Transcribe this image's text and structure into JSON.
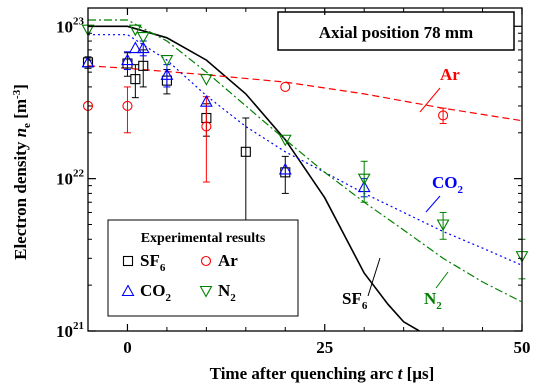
{
  "chart_data": {
    "type": "scatter",
    "title": "Axial position 78 mm",
    "xlabel": {
      "main": "Time after quenching arc ",
      "var": "t",
      "unit": " [µs]"
    },
    "ylabel": {
      "main": "Electron density ",
      "var": "n",
      "sub": "e",
      "unit_open": " [m",
      "unit_sup": "-3",
      "unit_close": "]"
    },
    "xlim": [
      -5,
      50
    ],
    "ylim_log10": [
      21,
      23.12
    ],
    "x_ticks": [
      {
        "value": 0,
        "label": "0"
      },
      {
        "value": 25,
        "label": "25"
      },
      {
        "value": 50,
        "label": "50"
      }
    ],
    "y_ticks": [
      {
        "value": 21,
        "base": "10",
        "exp": "21"
      },
      {
        "value": 22,
        "base": "10",
        "exp": "22"
      },
      {
        "value": 23,
        "base": "10",
        "exp": "23"
      }
    ],
    "legend": {
      "title": "Experimental results",
      "placement": "bottom-left",
      "items": [
        {
          "key": "SF6",
          "label": "SF",
          "sub": "6"
        },
        {
          "key": "Ar",
          "label": "Ar",
          "sub": ""
        },
        {
          "key": "CO2",
          "label": "CO",
          "sub": "2"
        },
        {
          "key": "N2",
          "label": "N",
          "sub": "2"
        }
      ]
    },
    "series": [
      {
        "key": "SF6",
        "marker": "square",
        "color": "#000000",
        "points": [
          {
            "x": -5,
            "y": 5.8e+22,
            "err": 5e+21
          },
          {
            "x": 0,
            "y": 5.7e+22,
            "err": 1e+22
          },
          {
            "x": 1,
            "y": 4.5e+22,
            "err": 1.1e+22
          },
          {
            "x": 2,
            "y": 5.5e+22,
            "err": 1.5e+22
          },
          {
            "x": 5,
            "y": 4.4e+22,
            "err": 8e+21
          },
          {
            "x": 10,
            "y": 2.5e+22,
            "err": 6e+21
          },
          {
            "x": 15,
            "y": 1.5e+22,
            "err": 1e+22
          },
          {
            "x": 20,
            "y": 1.1e+22,
            "err": 3e+21
          }
        ]
      },
      {
        "key": "Ar",
        "marker": "circle",
        "color": "#ff0000",
        "points": [
          {
            "x": -5,
            "y": 3e+22,
            "err": 0
          },
          {
            "x": 0,
            "y": 3e+22,
            "err": 1e+22
          },
          {
            "x": 10,
            "y": 2.2e+22,
            "err": 1.25e+22
          },
          {
            "x": 20,
            "y": 4e+22,
            "err": 0
          },
          {
            "x": 40,
            "y": 2.6e+22,
            "err": 3e+21
          }
        ]
      },
      {
        "key": "CO2",
        "marker": "triangle-up",
        "color": "#0000ff",
        "points": [
          {
            "x": -5,
            "y": 5.8e+22,
            "err": 0
          },
          {
            "x": 0,
            "y": 6e+22,
            "err": 8e+21
          },
          {
            "x": 1,
            "y": 7.2e+22,
            "err": 0
          },
          {
            "x": 2,
            "y": 7.2e+22,
            "err": 8e+21
          },
          {
            "x": 5,
            "y": 4.8e+22,
            "err": 8e+21
          },
          {
            "x": 10,
            "y": 3.2e+22,
            "err": 0
          },
          {
            "x": 20,
            "y": 1.15e+22,
            "err": 0
          },
          {
            "x": 30,
            "y": 8.8e+21,
            "err": 1.2e+21
          }
        ]
      },
      {
        "key": "N2",
        "marker": "triangle-down",
        "color": "#008000",
        "points": [
          {
            "x": -5,
            "y": 9.5e+22,
            "err": 0
          },
          {
            "x": 1,
            "y": 9.5e+22,
            "err": 0
          },
          {
            "x": 2,
            "y": 8.5e+22,
            "err": 0
          },
          {
            "x": 5,
            "y": 6e+22,
            "err": 0
          },
          {
            "x": 10,
            "y": 4.5e+22,
            "err": 0
          },
          {
            "x": 20,
            "y": 1.8e+22,
            "err": 0
          },
          {
            "x": 30,
            "y": 1e+22,
            "err": 3e+21
          },
          {
            "x": 40,
            "y": 5e+21,
            "err": 1e+21
          },
          {
            "x": 50,
            "y": 3.1e+21,
            "err": 9e+20
          }
        ]
      }
    ],
    "fit_curves": [
      {
        "key": "SF6",
        "label": "SF",
        "sub": "6",
        "color": "#000000",
        "style": "solid",
        "points": [
          [
            -5,
            1e+23
          ],
          [
            0,
            1e+23
          ],
          [
            5,
            8.4e+22
          ],
          [
            10,
            6e+22
          ],
          [
            15,
            3.6e+22
          ],
          [
            20,
            1.8e+22
          ],
          [
            25,
            7.5e+21
          ],
          [
            30,
            2.4e+21
          ],
          [
            33,
            1.5e+21
          ],
          [
            35,
            1.15e+21
          ],
          [
            37,
            1e+21
          ]
        ]
      },
      {
        "key": "Ar",
        "label": "Ar",
        "sub": "",
        "color": "#ff0000",
        "style": "dashed",
        "points": [
          [
            -5,
            5.5e+22
          ],
          [
            0,
            5.3e+22
          ],
          [
            10,
            4.8e+22
          ],
          [
            20,
            4.3e+22
          ],
          [
            30,
            3.6e+22
          ],
          [
            40,
            2.9e+22
          ],
          [
            50,
            2.4e+22
          ]
        ]
      },
      {
        "key": "CO2",
        "label": "CO",
        "sub": "2",
        "color": "#0000ff",
        "style": "dotted",
        "points": [
          [
            -5,
            8.8e+22
          ],
          [
            0,
            8.8e+22
          ],
          [
            5,
            6e+22
          ],
          [
            10,
            3.5e+22
          ],
          [
            15,
            2.2e+22
          ],
          [
            20,
            1.5e+22
          ],
          [
            25,
            1.1e+22
          ],
          [
            30,
            8e+21
          ],
          [
            35,
            6e+21
          ],
          [
            40,
            4.5e+21
          ],
          [
            45,
            3.5e+21
          ],
          [
            50,
            2.7e+21
          ]
        ]
      },
      {
        "key": "N2",
        "label": "N",
        "sub": "2",
        "color": "#008000",
        "style": "dashdot",
        "points": [
          [
            -5,
            1.1e+23
          ],
          [
            0,
            1.1e+23
          ],
          [
            5,
            8e+22
          ],
          [
            10,
            5e+22
          ],
          [
            15,
            3e+22
          ],
          [
            20,
            1.8e+22
          ],
          [
            25,
            1.1e+22
          ],
          [
            30,
            7e+21
          ],
          [
            35,
            4.6e+21
          ],
          [
            40,
            3e+21
          ],
          [
            45,
            2.1e+21
          ],
          [
            50,
            1.55e+21
          ]
        ]
      }
    ]
  }
}
